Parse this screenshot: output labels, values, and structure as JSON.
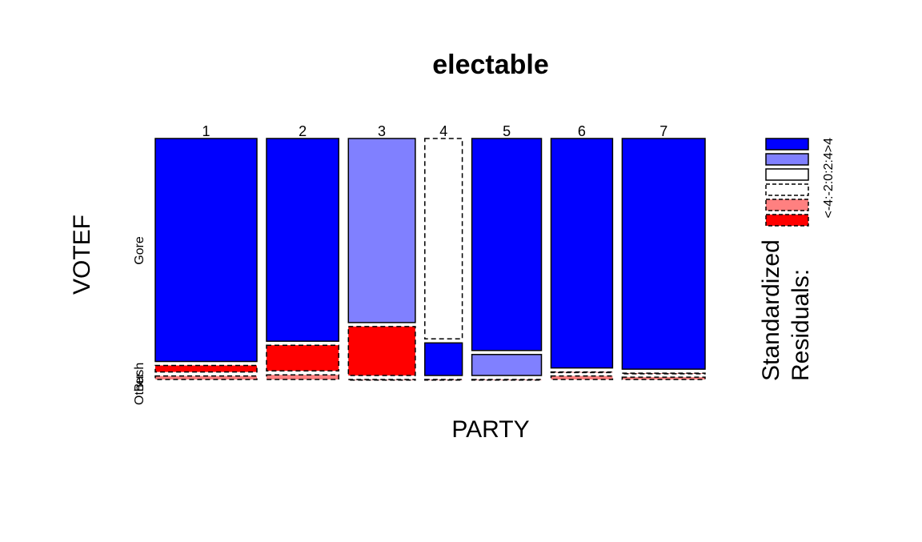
{
  "chart_data": {
    "type": "mosaic",
    "title": "electable",
    "xlabel": "PARTY",
    "ylabel": "VOTEF",
    "categories": [
      "1",
      "2",
      "3",
      "4",
      "5",
      "6",
      "7"
    ],
    "column_shares": [
      0.19,
      0.135,
      0.125,
      0.07,
      0.13,
      0.115,
      0.155
    ],
    "levels": [
      "Other",
      "Bush",
      "Gore"
    ],
    "level_tick_labels": [
      "Other",
      "Bush",
      "Gore"
    ],
    "cells": [
      {
        "category": "1",
        "shares": [
          0.015,
          0.028,
          0.957
        ],
        "fills": [
          "neg-1",
          "neg-2",
          "pos-2"
        ]
      },
      {
        "category": "2",
        "shares": [
          0.02,
          0.11,
          0.87
        ],
        "fills": [
          "neg-1",
          "neg-2",
          "pos-2"
        ]
      },
      {
        "category": "3",
        "shares": [
          0.0,
          0.105,
          0.895
        ],
        "fills": [
          "neg-1",
          "pos-1",
          "pos-1"
        ],
        "split": [
          0.0,
          0.21,
          0.79
        ]
      },
      {
        "category": "4",
        "shares": [
          0.0,
          0.14,
          0.86
        ],
        "fills": [
          "neg-1",
          "pos-2",
          "neutral-dashed"
        ]
      },
      {
        "category": "5",
        "shares": [
          0.0,
          0.09,
          0.91
        ],
        "fills": [
          "neg-1",
          "pos-1",
          "pos-2"
        ]
      },
      {
        "category": "6",
        "shares": [
          0.015,
          0.0,
          0.985
        ],
        "fills": [
          "neg-1",
          "neg-1",
          "pos-2"
        ]
      },
      {
        "category": "7",
        "shares": [
          0.01,
          0.0,
          0.99
        ],
        "fills": [
          "neg-1",
          "neg-1",
          "pos-2"
        ]
      }
    ],
    "legend": {
      "title_line1": "Standardized",
      "title_line2": "Residuals:",
      "labels": [
        "<-4",
        "-4:-2",
        "-2:0",
        "0:2",
        "2:4",
        ">4"
      ],
      "label_text": "<-4:-2:0:2:4>4",
      "placement": "right"
    },
    "colors": {
      "pos-2": "#0000ff",
      "pos-1": "#8080ff",
      "neutral": "#ffffff",
      "neg-1": "#ff8080",
      "neg-2": "#ff0000",
      "border": "#000000"
    }
  }
}
